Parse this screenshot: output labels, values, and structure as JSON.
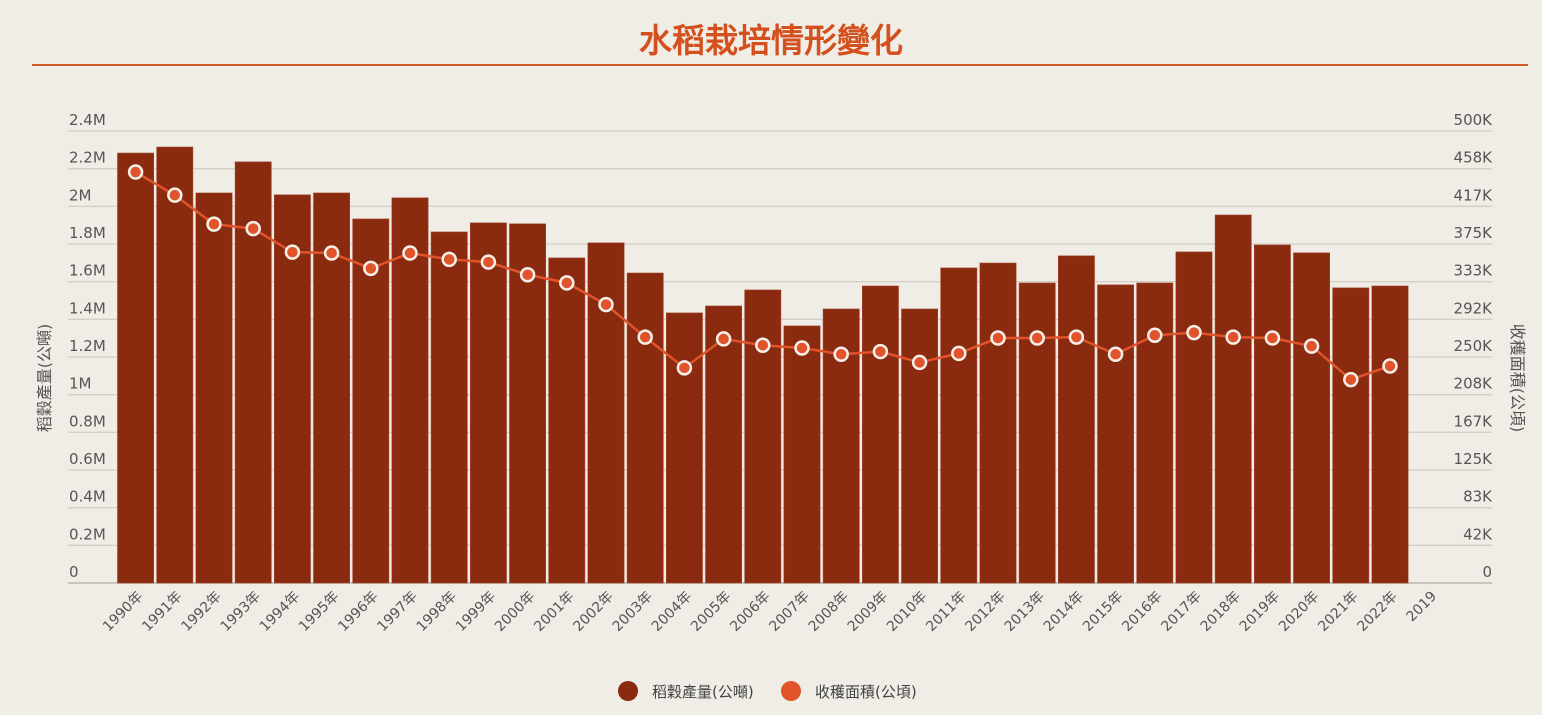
{
  "chart_data": {
    "type": "bar+line",
    "title": "水稻栽培情形變化",
    "categories": [
      "1990年",
      "1991年",
      "1992年",
      "1993年",
      "1994年",
      "1995年",
      "1996年",
      "1997年",
      "1998年",
      "1999年",
      "2000年",
      "2001年",
      "2002年",
      "2003年",
      "2004年",
      "2005年",
      "2006年",
      "2007年",
      "2008年",
      "2009年",
      "2010年",
      "2011年",
      "2012年",
      "2013年",
      "2014年",
      "2015年",
      "2016年",
      "2017年",
      "2018年",
      "2019年",
      "2020年",
      "2021年",
      "2022年",
      "2019"
    ],
    "ylabel_left": "稻穀產量(公噸)",
    "ylabel_right": "收穫面積(公頃)",
    "ylim_left": [
      0,
      2400000
    ],
    "ylim_right": [
      0,
      500000
    ],
    "yticks_left": [
      "0",
      "0.2M",
      "0.4M",
      "0.6M",
      "0.8M",
      "1M",
      "1.2M",
      "1.4M",
      "1.6M",
      "1.8M",
      "2M",
      "2.2M",
      "2.4M"
    ],
    "yticks_right": [
      "0",
      "42K",
      "83K",
      "125K",
      "167K",
      "208K",
      "250K",
      "292K",
      "333K",
      "375K",
      "417K",
      "458K",
      "500K"
    ],
    "grid": true,
    "legend_position": "bottom",
    "series": [
      {
        "name": "稻穀產量(公噸)",
        "type": "bar",
        "axis": "left",
        "color": "#8a2a0f",
        "values": [
          2283000,
          2315000,
          2071000,
          2236000,
          2061000,
          2071000,
          1933000,
          2045000,
          1864000,
          1912000,
          1907000,
          1726000,
          1806000,
          1646000,
          1434000,
          1471000,
          1556000,
          1365000,
          1455000,
          1577000,
          1455000,
          1673000,
          1699000,
          1593000,
          1737000,
          1583000,
          1593000,
          1758000,
          1954000,
          1795000,
          1753000,
          1567000,
          1577000,
          null
        ]
      },
      {
        "name": "收穫面積(公頃)",
        "type": "line",
        "axis": "right",
        "color": "#e0532b",
        "values": [
          454600,
          429000,
          397000,
          392000,
          366000,
          365000,
          348000,
          365000,
          358000,
          355000,
          341000,
          332000,
          308000,
          272000,
          238000,
          270000,
          263000,
          260000,
          253000,
          256000,
          244000,
          254000,
          271000,
          271000,
          272000,
          253000,
          274000,
          277000,
          272000,
          271000,
          262000,
          225000,
          240000,
          null
        ]
      }
    ]
  },
  "colors": {
    "background": "#f0ede6",
    "title": "#d4511f",
    "rule": "#d05a2a",
    "grid": "#cfcac2"
  }
}
